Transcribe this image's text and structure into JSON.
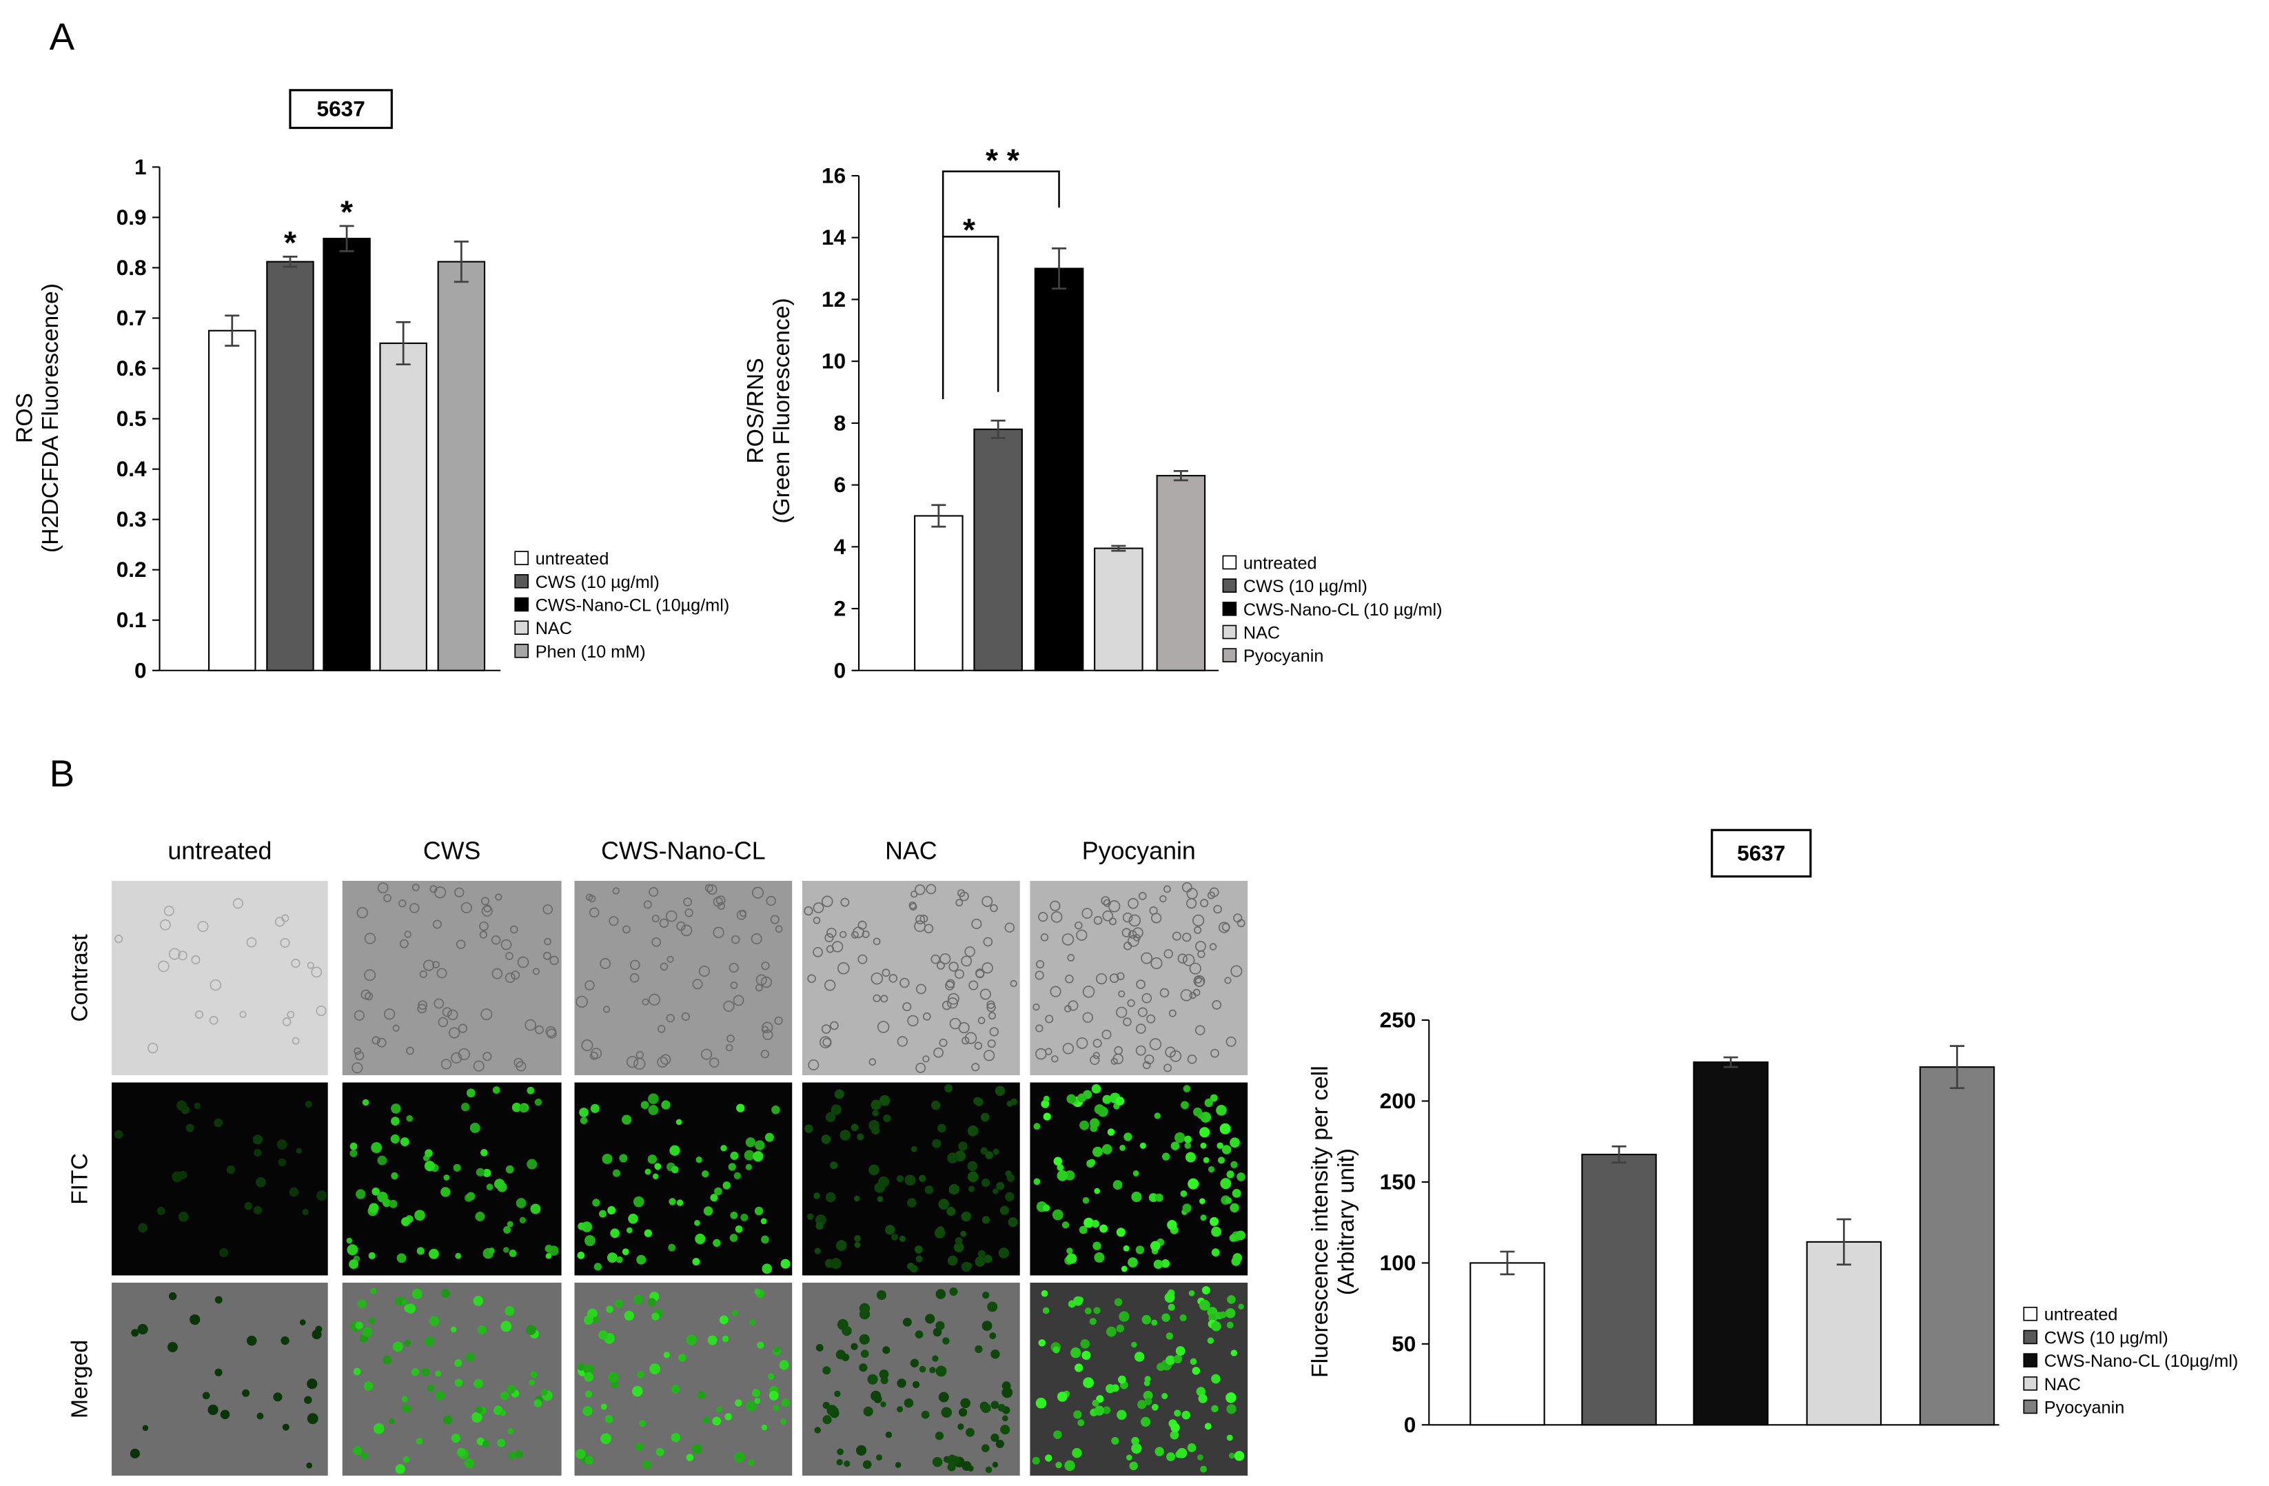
{
  "panels": [
    "A",
    "B"
  ],
  "images": {
    "columns": [
      "untreated",
      "CWS",
      "CWS-Nano-CL",
      "NAC",
      "Pyocyanin"
    ],
    "rows": [
      "Contrast",
      "FITC",
      "Merged"
    ]
  },
  "chart_data": [
    {
      "type": "bar",
      "title": "5637",
      "ylabel": [
        "ROS",
        "(H2DCFDA Fluorescence)"
      ],
      "ylim": [
        0,
        1
      ],
      "yticks": [
        0,
        0.1,
        0.2,
        0.3,
        0.4,
        0.5,
        0.6,
        0.7,
        0.8,
        0.9,
        1
      ],
      "series": [
        {
          "name": "untreated",
          "color": "#ffffff",
          "values": [
            0.675
          ],
          "errors": [
            0.03
          ]
        },
        {
          "name": "CWS (10 µg/ml)",
          "color": "#595959",
          "values": [
            0.812
          ],
          "errors": [
            0.01
          ]
        },
        {
          "name": "CWS-Nano-CL (10µg/ml)",
          "color": "#000000",
          "values": [
            0.858
          ],
          "errors": [
            0.025
          ]
        },
        {
          "name": "NAC",
          "color": "#d9d9d9",
          "values": [
            0.65
          ],
          "errors": [
            0.042
          ]
        },
        {
          "name": "Phen (10 mM)",
          "color": "#a6a6a6",
          "values": [
            0.812
          ],
          "errors": [
            0.04
          ]
        }
      ],
      "annotations": [
        "*",
        "*"
      ]
    },
    {
      "type": "bar",
      "ylabel": [
        "ROS/RNS",
        "(Green Fluorescence)"
      ],
      "ylim": [
        0,
        16
      ],
      "yticks": [
        0,
        2,
        4,
        6,
        8,
        10,
        12,
        14,
        16
      ],
      "series": [
        {
          "name": "untreated",
          "color": "#ffffff",
          "values": [
            5.0
          ],
          "errors": [
            0.35
          ]
        },
        {
          "name": "CWS (10 µg/ml)",
          "color": "#595959",
          "values": [
            7.8
          ],
          "errors": [
            0.28
          ]
        },
        {
          "name": "CWS-Nano-CL (10 µg/ml)",
          "color": "#000000",
          "values": [
            13.0
          ],
          "errors": [
            0.65
          ]
        },
        {
          "name": "NAC",
          "color": "#d9d9d9",
          "values": [
            3.95
          ],
          "errors": [
            0.08
          ]
        },
        {
          "name": "Pyocyanin",
          "color": "#aeaaaa",
          "values": [
            6.3
          ],
          "errors": [
            0.15
          ]
        }
      ],
      "annotations": [
        "*",
        "* *"
      ]
    },
    {
      "type": "bar",
      "title": "5637",
      "ylabel": [
        "Fluorescence intensity per cell",
        "(Arbitrary unit)"
      ],
      "ylim": [
        0,
        250
      ],
      "yticks": [
        0,
        50,
        100,
        150,
        200,
        250
      ],
      "series": [
        {
          "name": "untreated",
          "color": "#ffffff",
          "values": [
            100
          ],
          "errors": [
            7
          ]
        },
        {
          "name": "CWS (10 µg/ml)",
          "color": "#595959",
          "values": [
            167
          ],
          "errors": [
            5
          ]
        },
        {
          "name": "CWS-Nano-CL (10µg/ml)",
          "color": "#0d0d0d",
          "values": [
            224
          ],
          "errors": [
            3
          ]
        },
        {
          "name": "NAC",
          "color": "#d9d9d9",
          "values": [
            113
          ],
          "errors": [
            14
          ]
        },
        {
          "name": "Pyocyanin",
          "color": "#7f7f7f",
          "values": [
            221
          ],
          "errors": [
            13
          ]
        }
      ]
    }
  ]
}
